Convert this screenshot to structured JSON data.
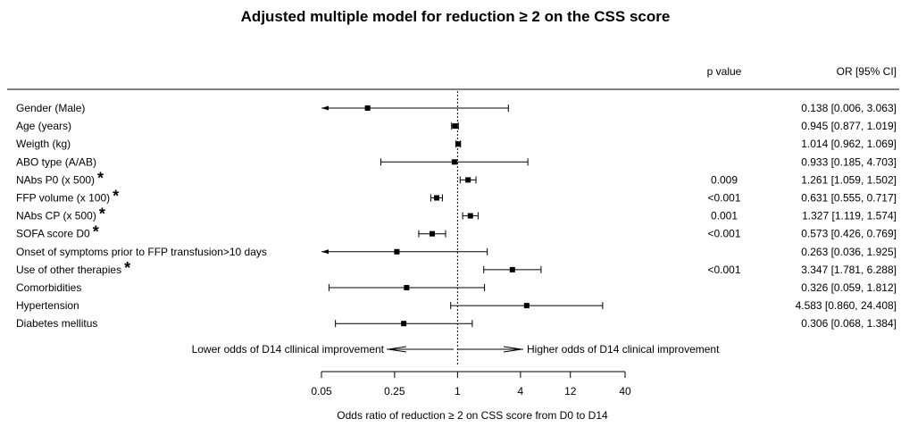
{
  "chart_data": {
    "type": "forest",
    "title": "Adjusted multiple model for reduction ≥ 2 on the CSS score",
    "xlabel": "Odds ratio of reduction ≥ 2 on CSS score from D0 to D14",
    "column_headers": {
      "pvalue": "p value",
      "or_ci": "OR [95% CI]"
    },
    "x_scale": "log",
    "xlim": [
      0.05,
      40
    ],
    "reference_line": 1,
    "ticks": [
      {
        "value": 0.05,
        "label": "0.05"
      },
      {
        "value": 0.25,
        "label": "0.25"
      },
      {
        "value": 1,
        "label": "1"
      },
      {
        "value": 4,
        "label": "4"
      },
      {
        "value": 12,
        "label": "12"
      },
      {
        "value": 40,
        "label": "40"
      }
    ],
    "direction_labels": {
      "left": "Lower odds of D14 cllinical improvement",
      "right": "Higher odds of D14 clinical improvement"
    },
    "significance_marker": "*",
    "rows": [
      {
        "label": "Gender (Male)",
        "or": 0.138,
        "lo": 0.006,
        "hi": 3.063,
        "p": "",
        "sig": false,
        "or_ci": "0.138 [0.006,  3.063]"
      },
      {
        "label": "Age (years)",
        "or": 0.945,
        "lo": 0.877,
        "hi": 1.019,
        "p": "",
        "sig": false,
        "or_ci": "0.945 [0.877,  1.019]"
      },
      {
        "label": "Weigth (kg)",
        "or": 1.014,
        "lo": 0.962,
        "hi": 1.069,
        "p": "",
        "sig": false,
        "or_ci": "1.014 [0.962,  1.069]"
      },
      {
        "label": "ABO type (A/AB)",
        "or": 0.933,
        "lo": 0.185,
        "hi": 4.703,
        "p": "",
        "sig": false,
        "or_ci": "0.933 [0.185,  4.703]"
      },
      {
        "label": "NAbs P0 (x 500)",
        "or": 1.261,
        "lo": 1.059,
        "hi": 1.502,
        "p": "0.009",
        "sig": true,
        "or_ci": "1.261 [1.059,  1.502]"
      },
      {
        "label": "FFP volume (x 100)",
        "or": 0.631,
        "lo": 0.555,
        "hi": 0.717,
        "p": "<0.001",
        "sig": true,
        "or_ci": "0.631 [0.555,  0.717]"
      },
      {
        "label": "NAbs CP (x 500)",
        "or": 1.327,
        "lo": 1.119,
        "hi": 1.574,
        "p": "0.001",
        "sig": true,
        "or_ci": "1.327 [1.119,  1.574]"
      },
      {
        "label": "SOFA score D0",
        "or": 0.573,
        "lo": 0.426,
        "hi": 0.769,
        "p": "<0.001",
        "sig": true,
        "or_ci": "0.573 [0.426,  0.769]"
      },
      {
        "label": "Onset of symptoms prior to FFP transfusion>10 days",
        "or": 0.263,
        "lo": 0.036,
        "hi": 1.925,
        "p": "",
        "sig": false,
        "or_ci": "0.263 [0.036,  1.925]"
      },
      {
        "label": "Use of other therapies",
        "or": 3.347,
        "lo": 1.781,
        "hi": 6.288,
        "p": "<0.001",
        "sig": true,
        "or_ci": "3.347 [1.781,  6.288]"
      },
      {
        "label": "Comorbidities",
        "or": 0.326,
        "lo": 0.059,
        "hi": 1.812,
        "p": "",
        "sig": false,
        "or_ci": "0.326 [0.059,  1.812]"
      },
      {
        "label": "Hypertension",
        "or": 4.583,
        "lo": 0.86,
        "hi": 24.408,
        "p": "",
        "sig": false,
        "or_ci": "4.583 [0.860, 24.408]"
      },
      {
        "label": "Diabetes mellitus",
        "or": 0.306,
        "lo": 0.068,
        "hi": 1.384,
        "p": "",
        "sig": false,
        "or_ci": "0.306 [0.068,  1.384]"
      }
    ]
  }
}
